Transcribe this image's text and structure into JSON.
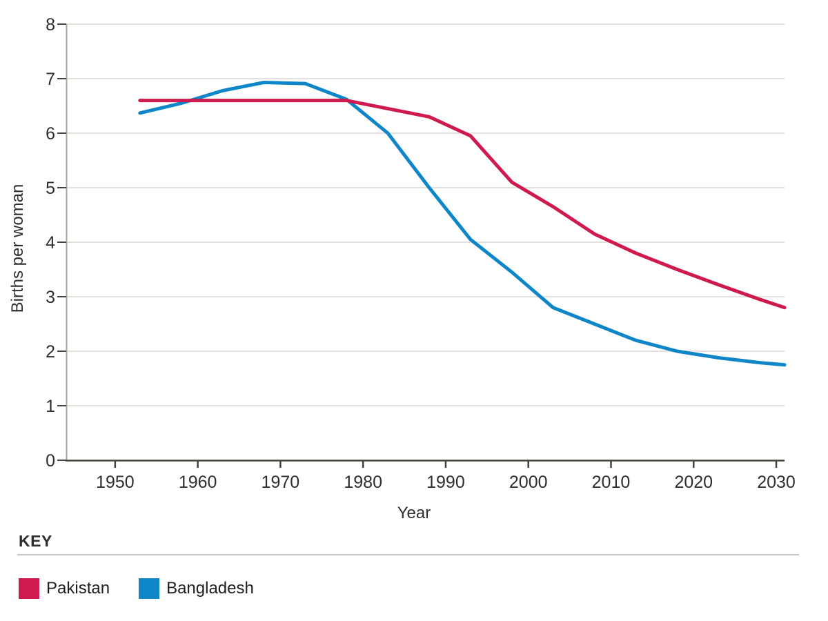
{
  "chart_data": {
    "type": "line",
    "title": "",
    "xlabel": "Year",
    "ylabel": "Births per woman",
    "xlim": [
      1944,
      2031
    ],
    "ylim": [
      0,
      8
    ],
    "x_ticks": [
      1950,
      1960,
      1970,
      1980,
      1990,
      2000,
      2010,
      2020,
      2030
    ],
    "y_ticks": [
      0,
      1,
      2,
      3,
      4,
      5,
      6,
      7,
      8
    ],
    "grid": "horizontal",
    "legend_position": "bottom-key",
    "x": [
      1953,
      1958,
      1963,
      1968,
      1973,
      1978,
      1983,
      1988,
      1993,
      1998,
      2003,
      2008,
      2013,
      2018,
      2023,
      2028,
      2031
    ],
    "series": [
      {
        "name": "Pakistan",
        "color": "#ce1a4e",
        "values": [
          6.6,
          6.6,
          6.6,
          6.6,
          6.6,
          6.6,
          6.45,
          6.3,
          5.95,
          5.1,
          4.65,
          4.15,
          3.8,
          3.5,
          3.22,
          2.95,
          2.8
        ]
      },
      {
        "name": "Bangladesh",
        "color": "#0e86c7",
        "values": [
          6.37,
          6.55,
          6.78,
          6.93,
          6.91,
          6.62,
          6.0,
          5.0,
          4.05,
          3.45,
          2.8,
          2.5,
          2.2,
          2.0,
          1.88,
          1.79,
          1.75
        ]
      }
    ]
  },
  "key": {
    "heading": "KEY",
    "items": [
      {
        "label": "Pakistan",
        "color": "#ce1a4e"
      },
      {
        "label": "Bangladesh",
        "color": "#0e86c7"
      }
    ]
  },
  "colors": {
    "background": "#ffffff",
    "gridline": "#e3e1df",
    "y_axis_line": "#a8a4a0",
    "x_axis_line": "#454240",
    "tick": "#454240",
    "tick_label": "#2e2e2e",
    "axis_title": "#1f1f1f",
    "key_rule": "#c9c7c5",
    "pakistan": "#ce1a4e",
    "bangladesh": "#0e86c7"
  }
}
